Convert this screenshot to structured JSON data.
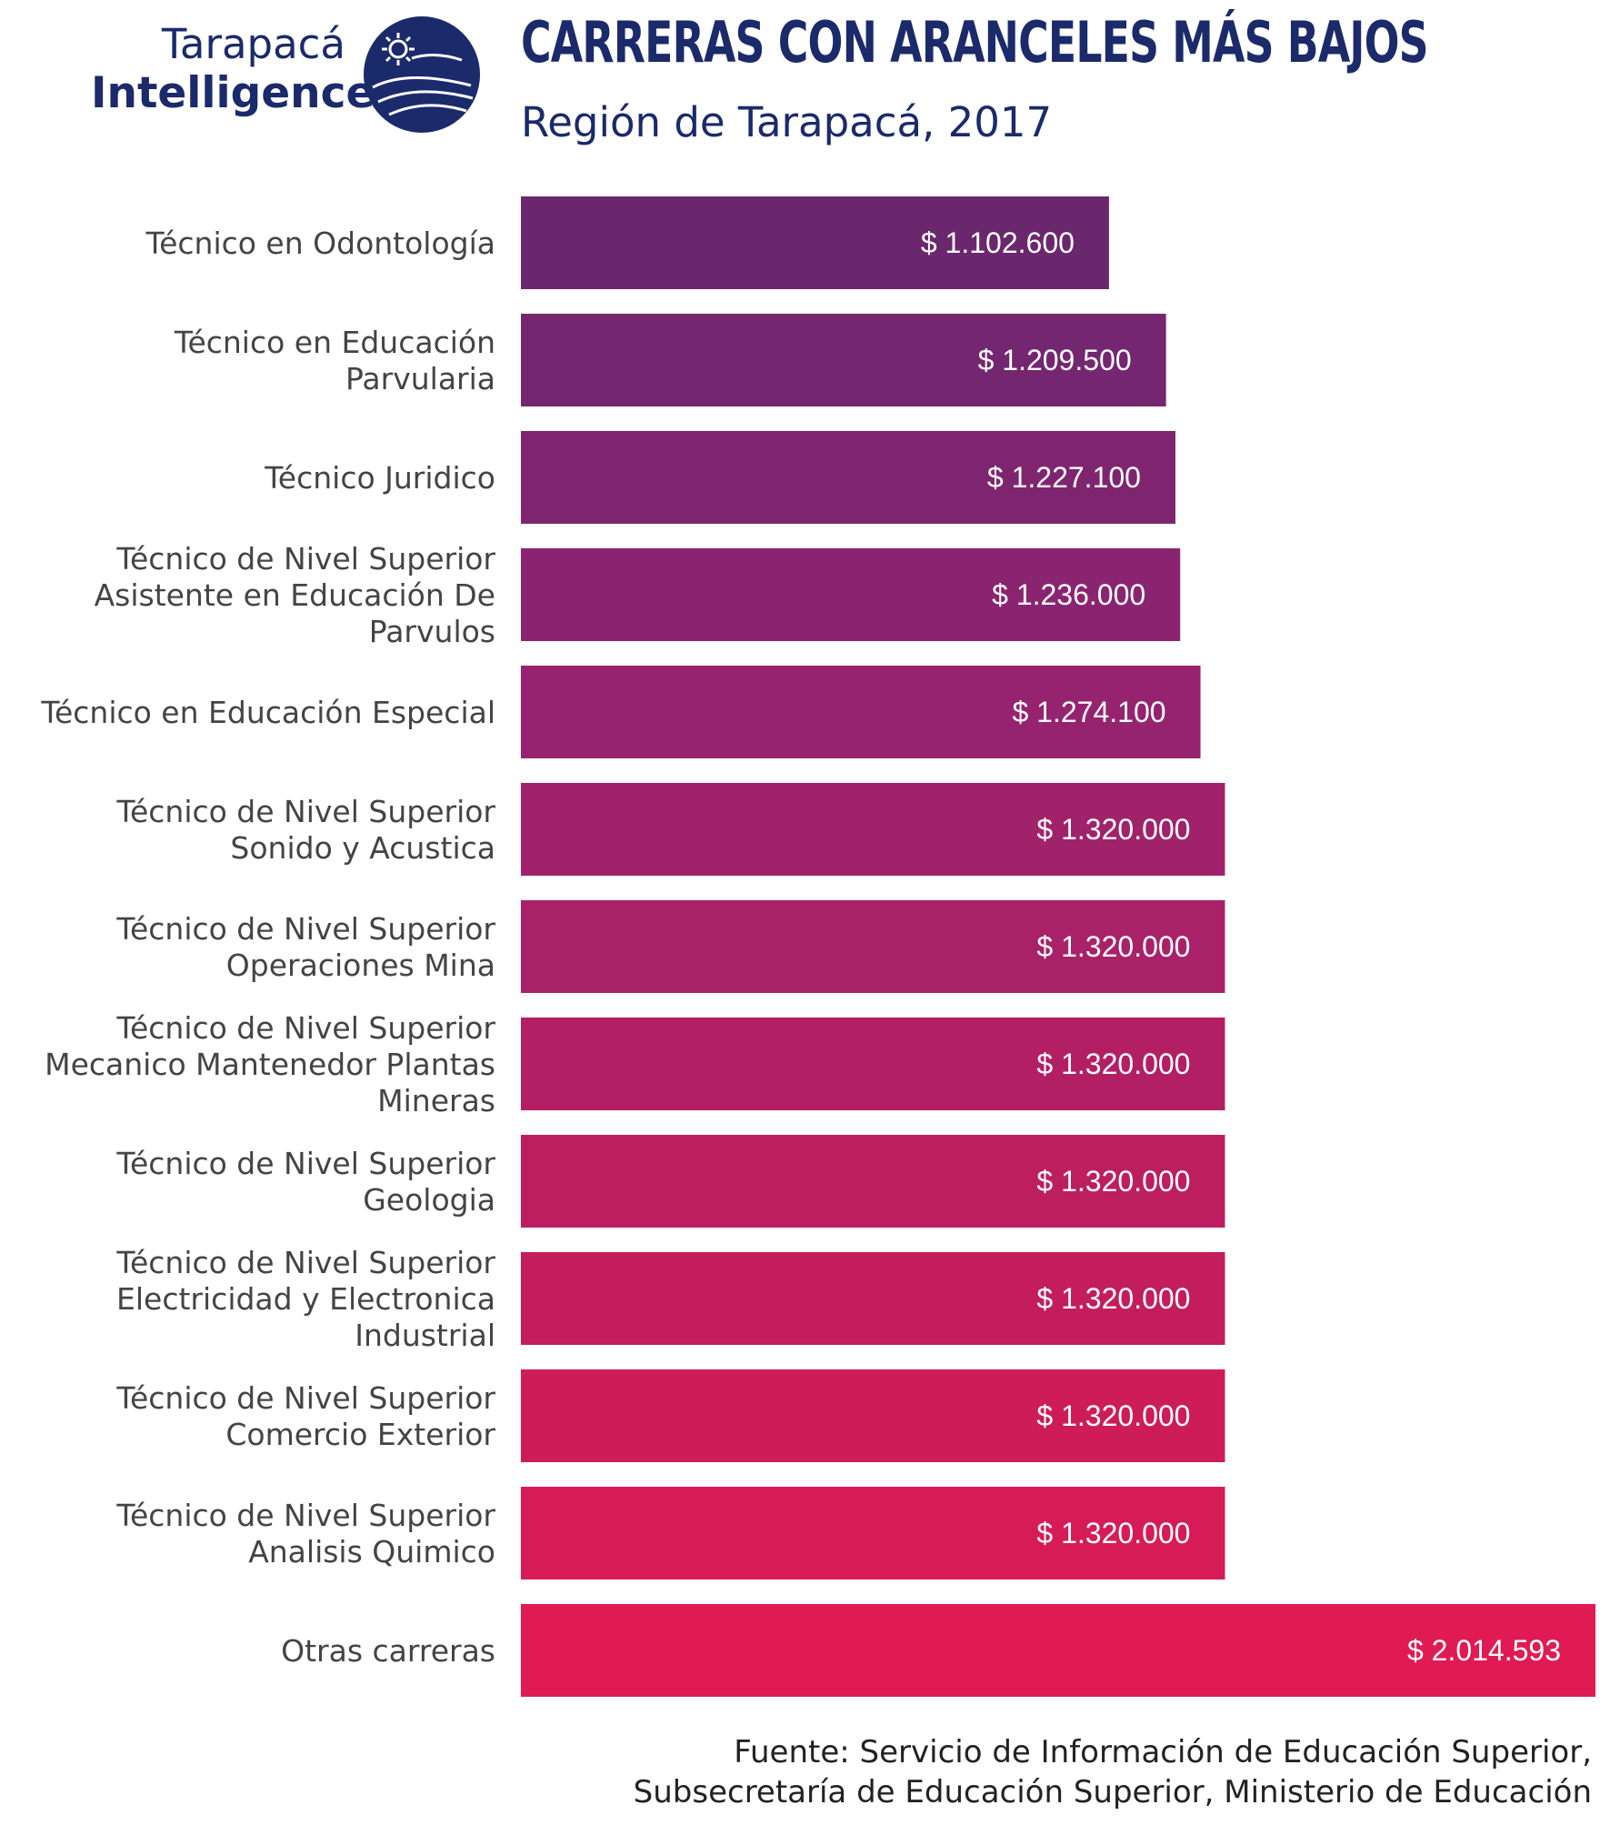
{
  "logo": {
    "line1": "Tarapacá",
    "line2": "Intelligence",
    "icon": "sun-globe-logo-icon",
    "color": "#1b2a6b"
  },
  "chart_data": {
    "type": "bar",
    "orientation": "horizontal",
    "title": "CARRERAS CON ARANCELES MÁS BAJOS",
    "subtitle": "Región de Tarapacá, 2017",
    "xlabel": "",
    "ylabel": "",
    "grid": false,
    "legend": "none",
    "xlim": [
      0,
      2014593
    ],
    "categories": [
      "Técnico en Odontología",
      "Técnico en Educación Parvularia",
      "Técnico Juridico",
      "Técnico de Nivel Superior Asistente en Educación De Parvulos",
      "Técnico en Educación Especial",
      "Técnico de Nivel Superior Sonido y Acustica",
      "Técnico de Nivel Superior Operaciones Mina",
      "Técnico de Nivel Superior Mecanico Mantenedor Plantas Mineras",
      "Técnico de Nivel Superior Geologia",
      "Técnico de Nivel Superior Electricidad y Electronica Industrial",
      "Técnico de Nivel Superior Comercio Exterior",
      "Técnico de Nivel Superior Analisis Quimico",
      "Otras carreras"
    ],
    "category_lines": [
      [
        "Técnico en Odontología"
      ],
      [
        "Técnico en Educación",
        "Parvularia"
      ],
      [
        "Técnico Juridico"
      ],
      [
        "Técnico de Nivel Superior",
        "Asistente en Educación De",
        "Parvulos"
      ],
      [
        "Técnico en Educación Especial"
      ],
      [
        "Técnico de Nivel Superior",
        "Sonido y Acustica"
      ],
      [
        "Técnico de Nivel Superior",
        "Operaciones Mina"
      ],
      [
        "Técnico de Nivel Superior",
        "Mecanico Mantenedor Plantas",
        "Mineras"
      ],
      [
        "Técnico de Nivel Superior",
        "Geologia"
      ],
      [
        "Técnico de Nivel Superior",
        "Electricidad y Electronica",
        "Industrial"
      ],
      [
        "Técnico de Nivel Superior",
        "Comercio Exterior"
      ],
      [
        "Técnico de Nivel Superior",
        "Analisis Quimico"
      ],
      [
        "Otras carreras"
      ]
    ],
    "values": [
      1102600,
      1209500,
      1227100,
      1236000,
      1274100,
      1320000,
      1320000,
      1320000,
      1320000,
      1320000,
      1320000,
      1320000,
      2014593
    ],
    "value_labels": [
      "$ 1.102.600",
      "$ 1.209.500",
      "$ 1.227.100",
      "$ 1.236.000",
      "$ 1.274.100",
      "$ 1.320.000",
      "$ 1.320.000",
      "$ 1.320.000",
      "$ 1.320.000",
      "$ 1.320.000",
      "$ 1.320.000",
      "$ 1.320.000",
      "$ 2.014.593"
    ],
    "colors": [
      "#6a276d",
      "#742670",
      "#7f2570",
      "#8a2470",
      "#952370",
      "#a0226b",
      "#a92168",
      "#b21f64",
      "#bc1e60",
      "#c41d5c",
      "#cd1c58",
      "#d61b56",
      "#e01a52"
    ],
    "label_color": "#444444",
    "value_label_color": "#ffffff"
  },
  "source": {
    "line1": "Fuente: Servicio de Información de Educación Superior,",
    "line2": "Subsecretaría de Educación Superior, Ministerio de Educación"
  }
}
